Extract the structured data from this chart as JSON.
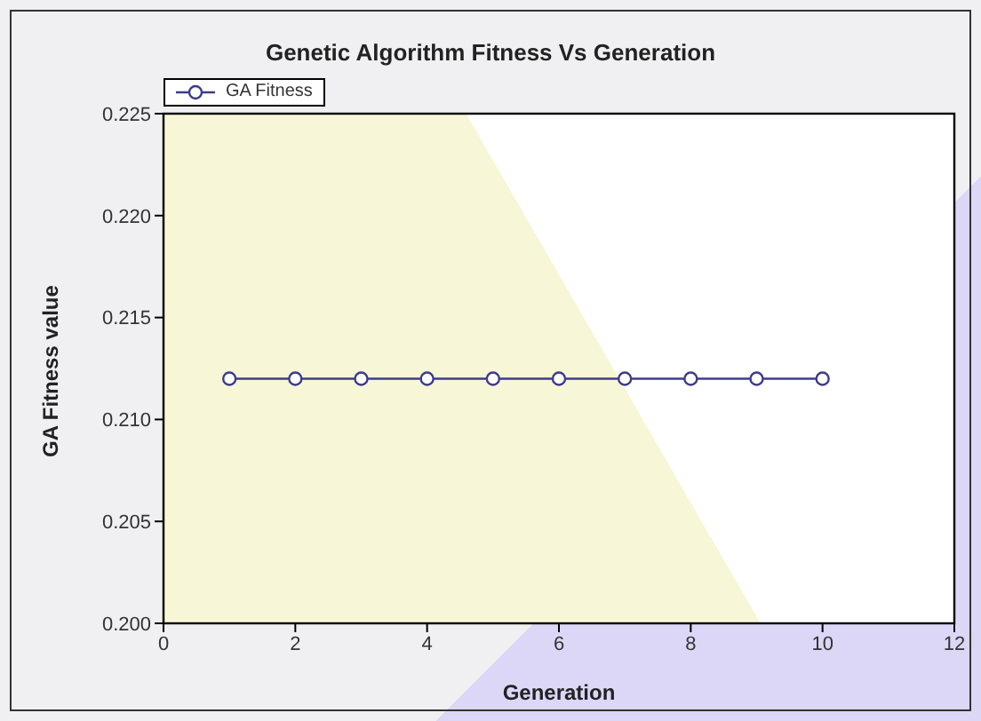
{
  "chart_data": {
    "type": "line",
    "title": "Genetic Algorithm Fitness Vs Generation",
    "xlabel": "Generation",
    "ylabel": "GA Fitness value",
    "x": [
      1,
      2,
      3,
      4,
      5,
      6,
      7,
      8,
      9,
      10
    ],
    "series": [
      {
        "name": "GA Fitness",
        "color": "#3c3c8c",
        "values": [
          0.212,
          0.212,
          0.212,
          0.212,
          0.212,
          0.212,
          0.212,
          0.212,
          0.212,
          0.212
        ]
      }
    ],
    "xlim": [
      0,
      12
    ],
    "xticks": [
      0,
      2,
      4,
      6,
      8,
      10,
      12
    ],
    "ylim": [
      0.2,
      0.225
    ],
    "yticks": [
      {
        "value": 0.2,
        "label": "0.200"
      },
      {
        "value": 0.205,
        "label": "0.205"
      },
      {
        "value": 0.21,
        "label": "0.210"
      },
      {
        "value": 0.215,
        "label": "0.215"
      },
      {
        "value": 0.22,
        "label": "0.220"
      },
      {
        "value": 0.225,
        "label": "0.225"
      }
    ],
    "grid": false,
    "legend": "top left",
    "marker": "circle",
    "line_style": "solid"
  }
}
